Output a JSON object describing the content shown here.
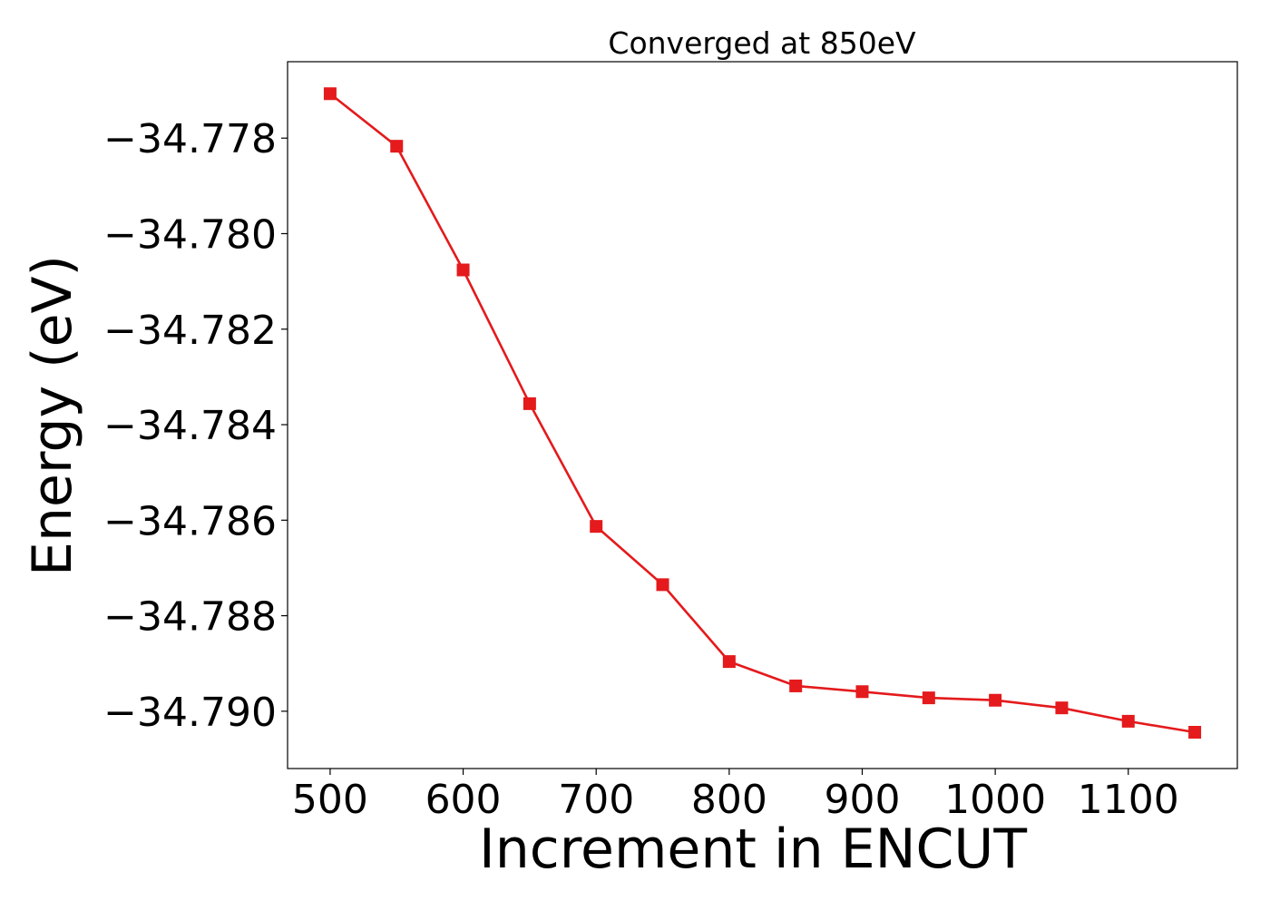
{
  "chart_data": {
    "type": "line",
    "title": "Converged at 850eV",
    "xlabel": "Increment in ENCUT",
    "ylabel": "Energy (eV)",
    "xlim": [
      468,
      1182
    ],
    "ylim": [
      -34.7912,
      -34.7764
    ],
    "x_ticks": [
      500,
      600,
      700,
      800,
      900,
      1000,
      1100
    ],
    "x_tick_labels": [
      "500",
      "600",
      "700",
      "800",
      "900",
      "1000",
      "1100"
    ],
    "y_ticks": [
      -34.778,
      -34.78,
      -34.782,
      -34.784,
      -34.786,
      -34.788,
      -34.79
    ],
    "y_tick_labels": [
      "−34.778",
      "−34.780",
      "−34.782",
      "−34.784",
      "−34.786",
      "−34.788",
      "−34.790"
    ],
    "grid": false,
    "legend": "none",
    "series": [
      {
        "color": "#e41a1c",
        "marker": "square",
        "x": [
          500,
          550,
          600,
          650,
          700,
          750,
          800,
          850,
          900,
          950,
          1000,
          1050,
          1100,
          1150
        ],
        "y": [
          -34.77707,
          -34.77817,
          -34.78076,
          -34.78356,
          -34.78613,
          -34.78735,
          -34.78896,
          -34.78947,
          -34.78959,
          -34.78972,
          -34.78977,
          -34.78993,
          -34.79021,
          -34.79044
        ]
      }
    ]
  }
}
